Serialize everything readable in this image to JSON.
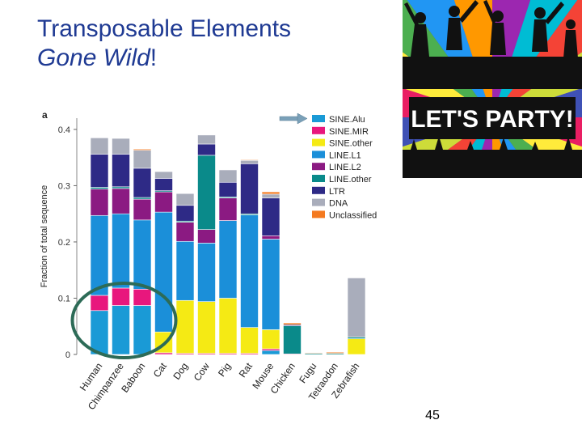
{
  "slide": {
    "title_line1": "Transposable Elements",
    "title_line2_italic": "Gone Wild",
    "title_line2_suffix": "!",
    "page_number": "45"
  },
  "image": {
    "banner_text": "LET'S PARTY!"
  },
  "colors": {
    "title": "#1f3a93",
    "circle": "#2d6b57",
    "arrow": "#7aa0b8"
  },
  "chart_data": {
    "type": "bar",
    "stacked": true,
    "panel_label": "a",
    "ylabel": "Fraction of total sequence",
    "ylim": [
      0,
      0.42
    ],
    "yticks": [
      0,
      0.1,
      0.2,
      0.3,
      0.4
    ],
    "ytick_labels": [
      "0",
      "0.1",
      "0.2",
      "0.3",
      "0.4"
    ],
    "legend_position": "right",
    "categories": [
      "Human",
      "Chimpanzee",
      "Baboon",
      "Cat",
      "Dog",
      "Cow",
      "Pig",
      "Rat",
      "Mouse",
      "Chicken",
      "Fugu",
      "Tetraodon",
      "Zebrafish"
    ],
    "series": [
      {
        "name": "SINE.Alu",
        "color": "#1a9ad6",
        "values": [
          0.078,
          0.087,
          0.087,
          0,
          0,
          0,
          0,
          0,
          0.007,
          0,
          0,
          0,
          0
        ]
      },
      {
        "name": "SINE.MIR",
        "color": "#e8177d",
        "values": [
          0.027,
          0.031,
          0.029,
          0.003,
          0.002,
          0.002,
          0.002,
          0.002,
          0.003,
          0.001,
          0,
          0,
          0
        ]
      },
      {
        "name": "SINE.other",
        "color": "#f5ea14",
        "values": [
          0,
          0,
          0,
          0.037,
          0.094,
          0.092,
          0.098,
          0.046,
          0.034,
          0,
          0,
          0,
          0.028
        ]
      },
      {
        "name": "LINE.L1",
        "color": "#1b8fd9",
        "values": [
          0.142,
          0.132,
          0.123,
          0.213,
          0.105,
          0.104,
          0.138,
          0.2,
          0.161,
          0,
          0,
          0,
          0
        ]
      },
      {
        "name": "LINE.L2",
        "color": "#8b1a82",
        "values": [
          0.047,
          0.045,
          0.037,
          0.036,
          0.034,
          0.024,
          0.04,
          0,
          0.006,
          0,
          0,
          0,
          0
        ]
      },
      {
        "name": "LINE.other",
        "color": "#0a8a8a",
        "values": [
          0.003,
          0.003,
          0.003,
          0.002,
          0.002,
          0.132,
          0.002,
          0.002,
          0,
          0.05,
          0.002,
          0.002,
          0.003
        ]
      },
      {
        "name": "LTR",
        "color": "#2e2a86",
        "values": [
          0.059,
          0.058,
          0.052,
          0.022,
          0.028,
          0.02,
          0.026,
          0.089,
          0.067,
          0.002,
          0,
          0,
          0
        ]
      },
      {
        "name": "DNA",
        "color": "#a9adbb",
        "values": [
          0.029,
          0.028,
          0.032,
          0.012,
          0.021,
          0.016,
          0.022,
          0.006,
          0.007,
          0,
          0,
          0,
          0.105
        ]
      },
      {
        "name": "Unclassified",
        "color": "#f47a20",
        "values": [
          0,
          0,
          0.002,
          0,
          0,
          0,
          0,
          0.001,
          0.004,
          0.003,
          0.001,
          0.002,
          0
        ]
      }
    ]
  }
}
